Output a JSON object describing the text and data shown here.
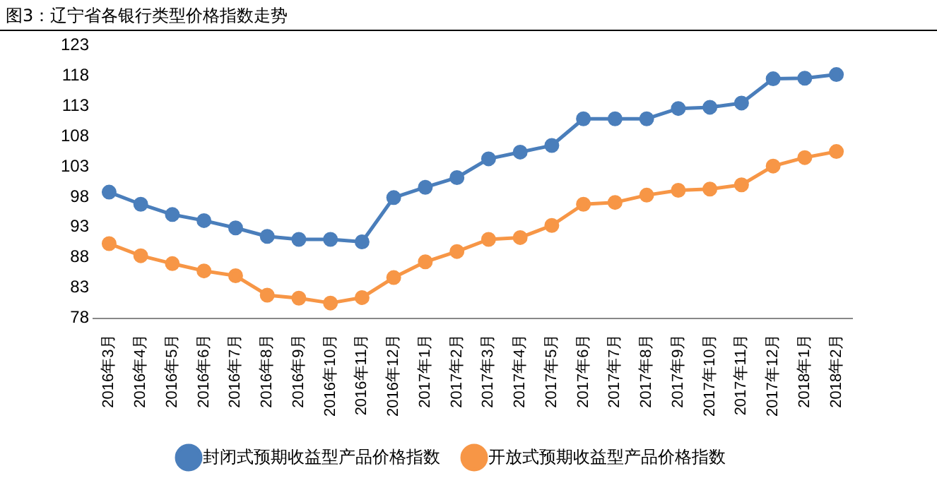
{
  "chart_data": {
    "type": "line",
    "title": "图3：辽宁省各银行类型价格指数走势",
    "categories": [
      "2016年3月",
      "2016年4月",
      "2016年5月",
      "2016年6月",
      "2016年7月",
      "2016年8月",
      "2016年9月",
      "2016年10月",
      "2016年11月",
      "2016年12月",
      "2017年1月",
      "2017年2月",
      "2017年3月",
      "2017年4月",
      "2017年5月",
      "2017年6月",
      "2017年7月",
      "2017年8月",
      "2017年9月",
      "2017年10月",
      "2017年11月",
      "2017年12月",
      "2018年1月",
      "2018年2月"
    ],
    "series": [
      {
        "name": "封闭式预期收益型产品价格指数",
        "color": "#4a7ebb",
        "values": [
          98.8,
          96.8,
          95.1,
          94.1,
          92.9,
          91.5,
          91.0,
          91.0,
          90.6,
          97.9,
          99.6,
          101.2,
          104.3,
          105.4,
          106.5,
          110.9,
          110.9,
          110.9,
          112.6,
          112.8,
          113.5,
          117.5,
          117.6,
          118.2
        ]
      },
      {
        "name": "开放式预期收益型产品价格指数",
        "color": "#f79646",
        "values": [
          90.3,
          88.3,
          87.0,
          85.8,
          85.0,
          81.8,
          81.3,
          80.5,
          81.4,
          84.7,
          87.3,
          89.0,
          91.0,
          91.3,
          93.3,
          96.8,
          97.1,
          98.3,
          99.1,
          99.3,
          100.0,
          103.1,
          104.5,
          105.5
        ]
      }
    ],
    "ylim": [
      78,
      123
    ],
    "yticks": [
      78,
      83,
      88,
      93,
      98,
      103,
      108,
      113,
      118,
      123
    ],
    "grid": false,
    "legend": "bottom",
    "marker": "circle",
    "line_style": "solid"
  }
}
